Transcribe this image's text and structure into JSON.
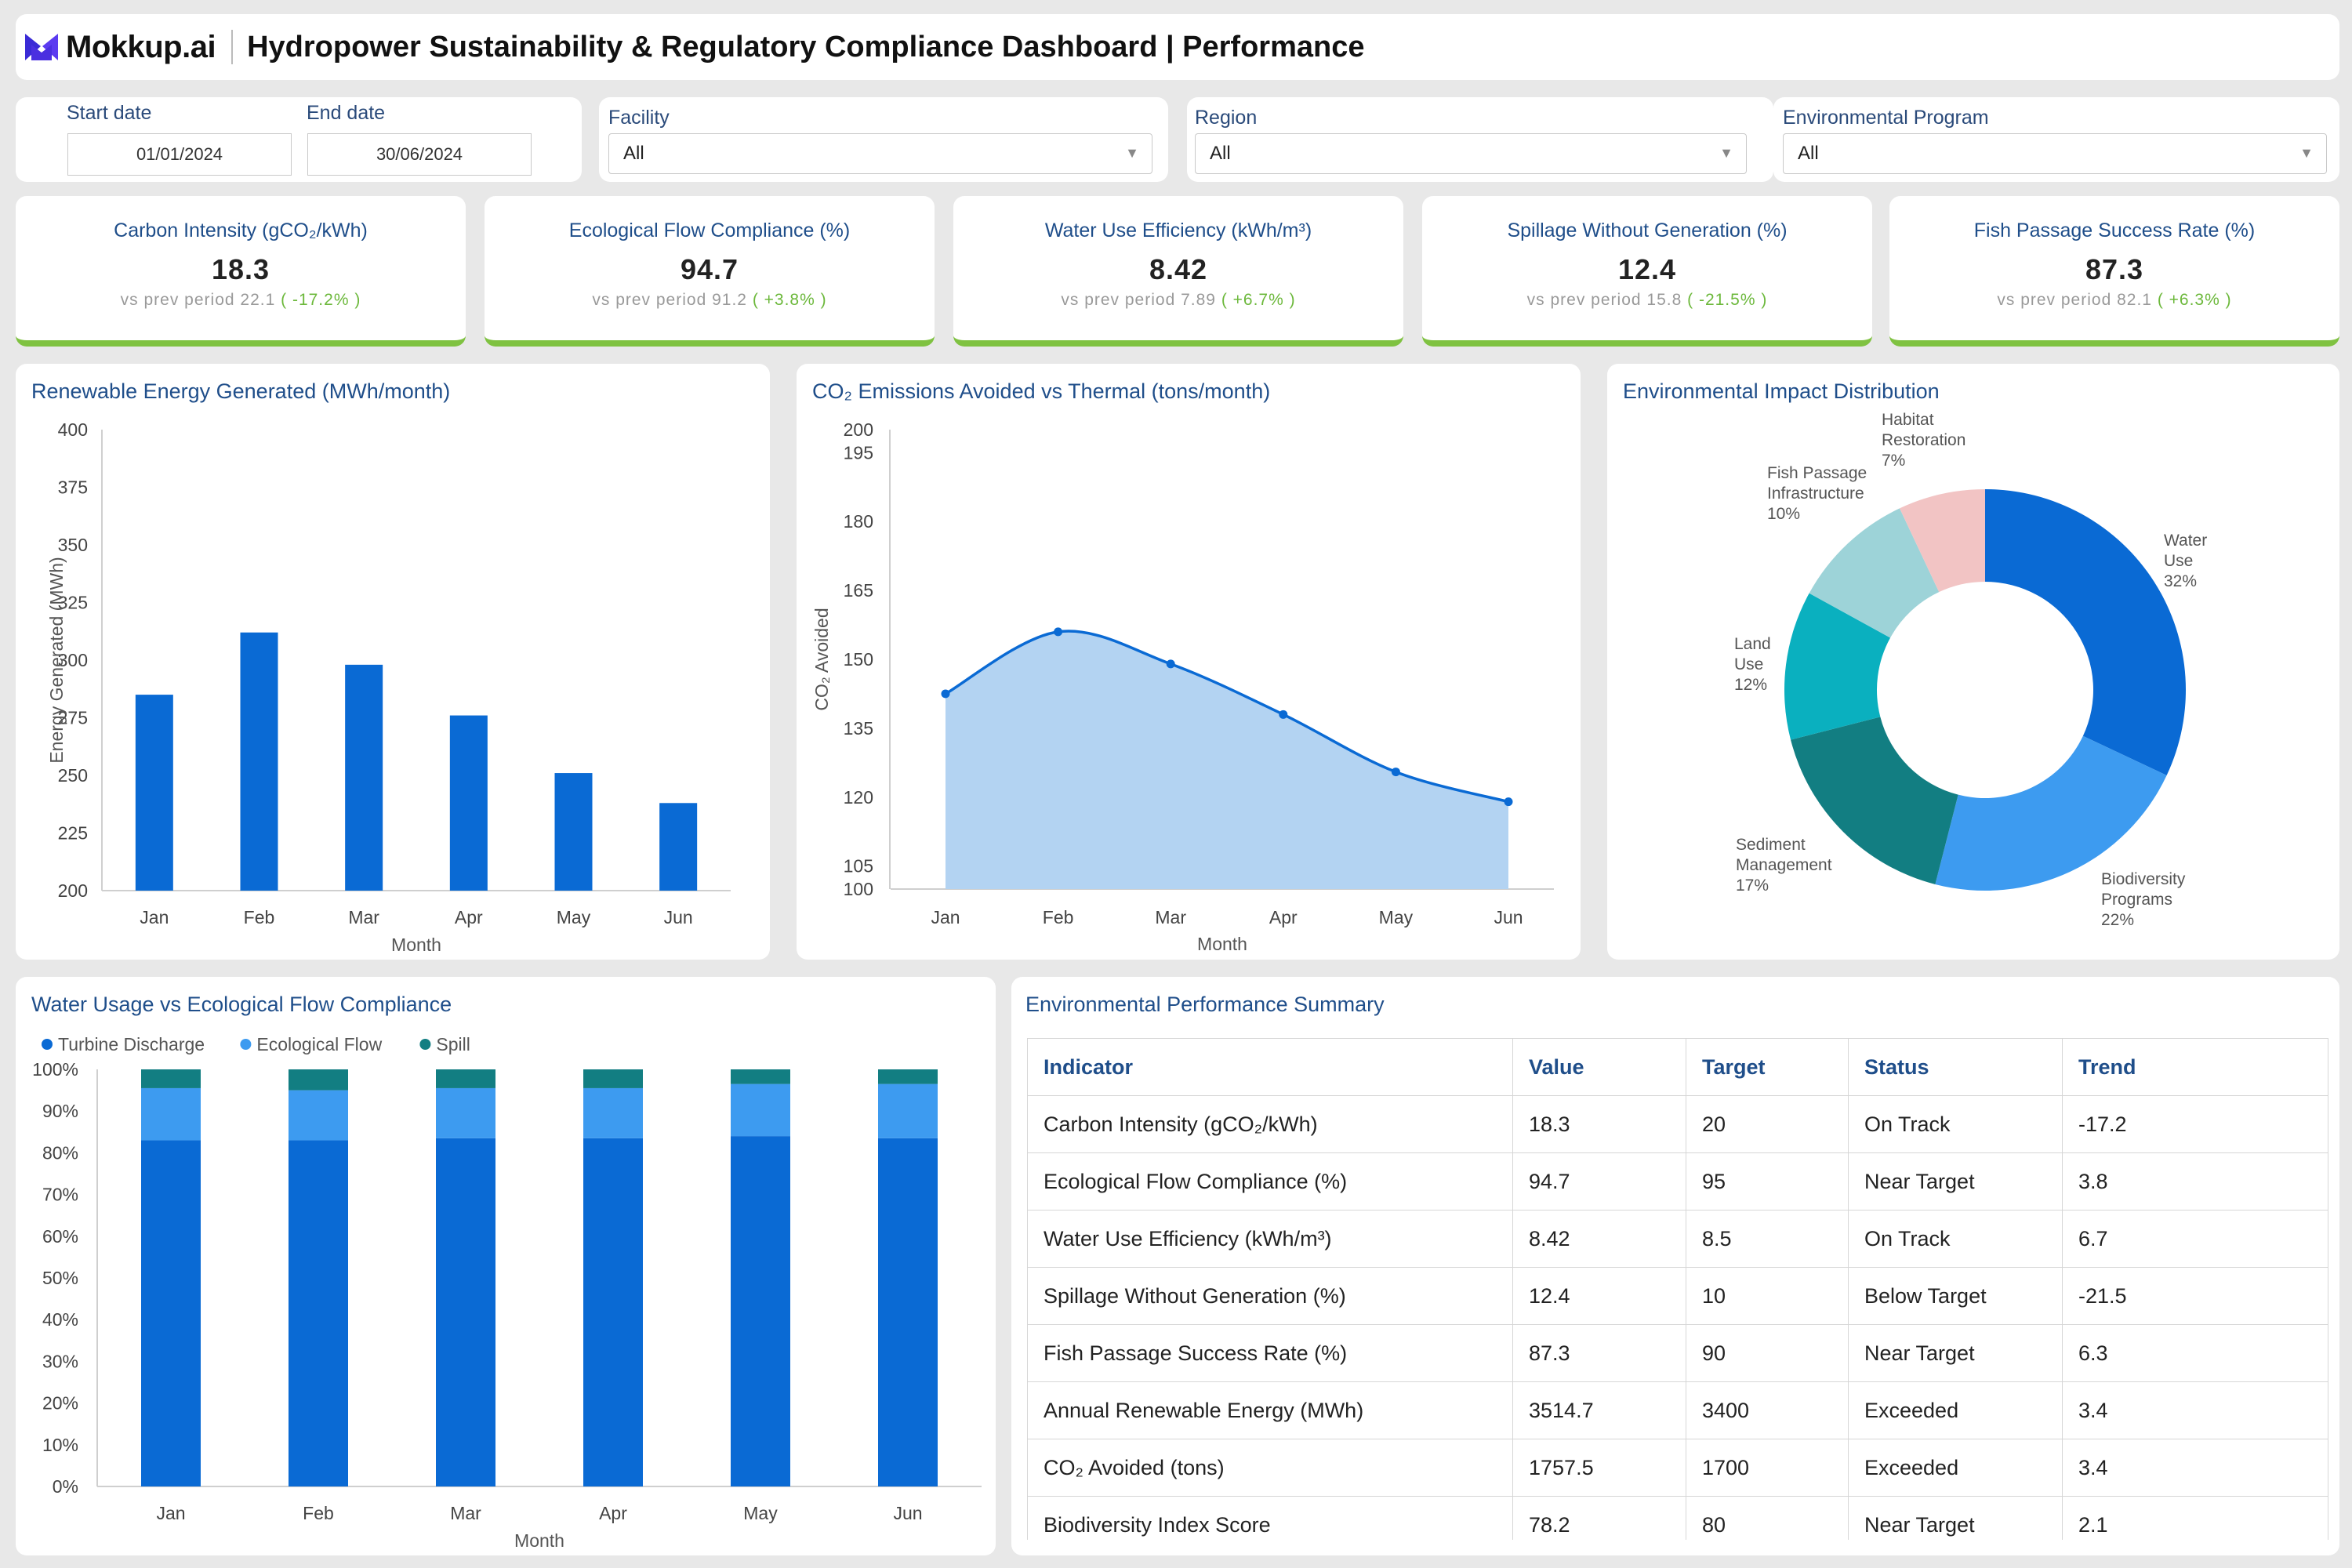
{
  "header": {
    "brand": "Mokkup.ai",
    "title": "Hydropower Sustainability & Regulatory Compliance Dashboard | Performance"
  },
  "filters": {
    "start_label": "Start date",
    "end_label": "End date",
    "start_value": "01/01/2024",
    "end_value": "30/06/2024",
    "facility_label": "Facility",
    "facility_value": "All",
    "region_label": "Region",
    "region_value": "All",
    "program_label": "Environmental Program",
    "program_value": "All"
  },
  "kpis": [
    {
      "title": "Carbon Intensity (gCO₂/kWh)",
      "value": "18.3",
      "prev_label": "vs prev period",
      "prev": "22.1",
      "change": "( -17.2% )"
    },
    {
      "title": "Ecological Flow Compliance (%)",
      "value": "94.7",
      "prev_label": "vs prev period",
      "prev": "91.2",
      "change": "( +3.8% )"
    },
    {
      "title": "Water Use Efficiency (kWh/m³)",
      "value": "8.42",
      "prev_label": "vs prev period",
      "prev": "7.89",
      "change": "( +6.7% )"
    },
    {
      "title": "Spillage Without Generation (%)",
      "value": "12.4",
      "prev_label": "vs prev period",
      "prev": "15.8",
      "change": "( -21.5% )"
    },
    {
      "title": "Fish Passage Success Rate (%)",
      "value": "87.3",
      "prev_label": "vs prev period",
      "prev": "82.1",
      "change": "( +6.3% )"
    }
  ],
  "colors": {
    "primary": "#0a6ad4",
    "light_blue": "#3d9bf0",
    "teal": "#127e82",
    "area_fill": "#b3d3f2",
    "kpi_accent": "#7fc241",
    "title_blue": "#1f4e8a"
  },
  "chart_data": [
    {
      "type": "bar",
      "title": "Renewable Energy Generated (MWh/month)",
      "xlabel": "Month",
      "ylabel": "Energy Generated (MWh)",
      "categories": [
        "Jan",
        "Feb",
        "Mar",
        "Apr",
        "May",
        "Jun"
      ],
      "values": [
        285,
        312,
        298,
        276,
        251,
        238
      ],
      "ylim": [
        200,
        400
      ],
      "yticks": [
        200,
        225,
        250,
        275,
        300,
        325,
        350,
        375,
        400
      ]
    },
    {
      "type": "area",
      "title": "CO₂ Emissions Avoided vs Thermal (tons/month)",
      "xlabel": "Month",
      "ylabel": "CO₂ Avoided",
      "categories": [
        "Jan",
        "Feb",
        "Mar",
        "Apr",
        "May",
        "Jun"
      ],
      "values": [
        142.5,
        156,
        149,
        138,
        125.5,
        119
      ],
      "ylim": [
        100,
        200
      ],
      "yticks": [
        100,
        105,
        120,
        135,
        150,
        165,
        180,
        195,
        200
      ]
    },
    {
      "type": "pie",
      "title": "Environmental Impact Distribution",
      "slices": [
        {
          "label": "Water Use",
          "pct": "32%",
          "value": 32,
          "color": "#0a6ad4"
        },
        {
          "label": "Biodiversity Programs",
          "pct": "22%",
          "value": 22,
          "color": "#3d9bf0"
        },
        {
          "label": "Sediment Management",
          "pct": "17%",
          "value": 17,
          "color": "#127e82"
        },
        {
          "label": "Land Use",
          "pct": "12%",
          "value": 12,
          "color": "#0ab0bf"
        },
        {
          "label": "Fish Passage Infrastructure",
          "pct": "10%",
          "value": 10,
          "color": "#9dd3d8"
        },
        {
          "label": "Habitat Restoration",
          "pct": "7%",
          "value": 7,
          "color": "#f2c4c4"
        }
      ]
    },
    {
      "type": "bar",
      "stacked": true,
      "title": "Water Usage vs Ecological Flow Compliance",
      "xlabel": "Month",
      "categories": [
        "Jan",
        "Feb",
        "Mar",
        "Apr",
        "May",
        "Jun"
      ],
      "ylim": [
        0,
        100
      ],
      "yticks": [
        "0%",
        "10%",
        "20%",
        "30%",
        "40%",
        "50%",
        "60%",
        "70%",
        "80%",
        "90%",
        "100%"
      ],
      "legend_position": "top-left",
      "series": [
        {
          "name": "Turbine Discharge",
          "color": "#0a6ad4",
          "values": [
            83,
            83,
            83.5,
            83.5,
            84,
            83.5
          ]
        },
        {
          "name": "Ecological Flow",
          "color": "#3d9bf0",
          "values": [
            12.5,
            12,
            12,
            12,
            12.5,
            13
          ]
        },
        {
          "name": "Spill",
          "color": "#127e82",
          "values": [
            4.5,
            5,
            4.5,
            4.5,
            3.5,
            3.5
          ]
        }
      ]
    }
  ],
  "summary": {
    "title": "Environmental Performance Summary",
    "columns": [
      "Indicator",
      "Value",
      "Target",
      "Status",
      "Trend"
    ],
    "rows": [
      [
        "Carbon Intensity (gCO₂/kWh)",
        "18.3",
        "20",
        "On Track",
        "-17.2"
      ],
      [
        "Ecological Flow Compliance (%)",
        "94.7",
        "95",
        "Near Target",
        "3.8"
      ],
      [
        "Water Use Efficiency (kWh/m³)",
        "8.42",
        "8.5",
        "On Track",
        "6.7"
      ],
      [
        "Spillage Without Generation (%)",
        "12.4",
        "10",
        "Below Target",
        "-21.5"
      ],
      [
        "Fish Passage Success Rate (%)",
        "87.3",
        "90",
        "Near Target",
        "6.3"
      ],
      [
        "Annual Renewable Energy (MWh)",
        "3514.7",
        "3400",
        "Exceeded",
        "3.4"
      ],
      [
        "CO₂ Avoided (tons)",
        "1757.5",
        "1700",
        "Exceeded",
        "3.4"
      ],
      [
        "Biodiversity Index Score",
        "78.2",
        "80",
        "Near Target",
        "2.1"
      ]
    ]
  }
}
